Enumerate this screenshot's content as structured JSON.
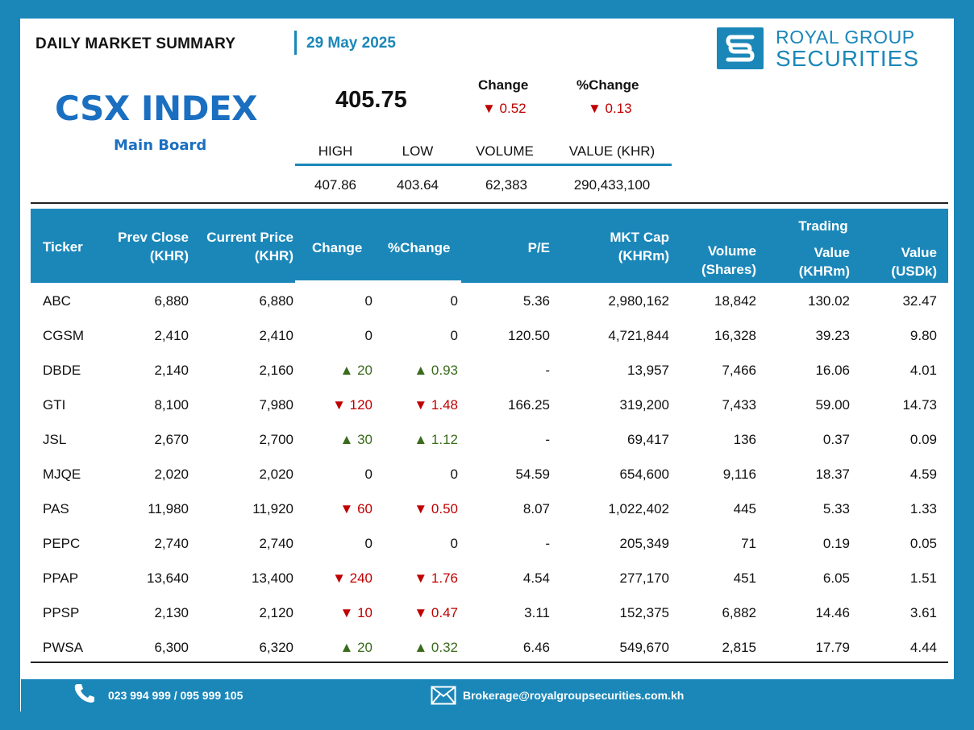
{
  "header": {
    "summary_title": "DAILY MARKET SUMMARY",
    "date": "29 May 2025",
    "brand_line1": "ROYAL GROUP",
    "brand_line2": "SECURITIES"
  },
  "index": {
    "name": "CSX INDEX",
    "board": "Main Board",
    "value": "405.75",
    "change_label": "Change",
    "pct_change_label": "%Change",
    "change": "▼ 0.52",
    "pct_change": "▼ 0.13",
    "stats": [
      {
        "label": "HIGH",
        "value": "407.86"
      },
      {
        "label": "LOW",
        "value": "403.64"
      },
      {
        "label": "VOLUME",
        "value": "62,383"
      },
      {
        "label": "VALUE (KHR)",
        "value": "290,433,100"
      }
    ]
  },
  "table": {
    "headers": {
      "ticker": "Ticker",
      "prev_close_1": "Prev Close",
      "prev_close_2": "(KHR)",
      "current_1": "Current Price",
      "current_2": "(KHR)",
      "change": "Change",
      "pct_change": "%Change",
      "pe": "P/E",
      "mkt_cap_1": "MKT Cap",
      "mkt_cap_2": "(KHRm)",
      "trading": "Trading",
      "volume_1": "Volume",
      "volume_2": "(Shares)",
      "value_khr_1": "Value",
      "value_khr_2": "(KHRm)",
      "value_usd_1": "Value",
      "value_usd_2": "(USDk)"
    },
    "rows": [
      {
        "ticker": "ABC",
        "prev": "6,880",
        "cur": "6,880",
        "chg": "0",
        "pct": "0",
        "dir": "flat",
        "pe": "5.36",
        "mcap": "2,980,162",
        "vol": "18,842",
        "val_khr": "130.02",
        "val_usd": "32.47"
      },
      {
        "ticker": "CGSM",
        "prev": "2,410",
        "cur": "2,410",
        "chg": "0",
        "pct": "0",
        "dir": "flat",
        "pe": "120.50",
        "mcap": "4,721,844",
        "vol": "16,328",
        "val_khr": "39.23",
        "val_usd": "9.80"
      },
      {
        "ticker": "DBDE",
        "prev": "2,140",
        "cur": "2,160",
        "chg": "▲ 20",
        "pct": "▲ 0.93",
        "dir": "up",
        "pe": "-",
        "mcap": "13,957",
        "vol": "7,466",
        "val_khr": "16.06",
        "val_usd": "4.01"
      },
      {
        "ticker": "GTI",
        "prev": "8,100",
        "cur": "7,980",
        "chg": "▼ 120",
        "pct": "▼ 1.48",
        "dir": "dn",
        "pe": "166.25",
        "mcap": "319,200",
        "vol": "7,433",
        "val_khr": "59.00",
        "val_usd": "14.73"
      },
      {
        "ticker": "JSL",
        "prev": "2,670",
        "cur": "2,700",
        "chg": "▲ 30",
        "pct": "▲ 1.12",
        "dir": "up",
        "pe": "-",
        "mcap": "69,417",
        "vol": "136",
        "val_khr": "0.37",
        "val_usd": "0.09"
      },
      {
        "ticker": "MJQE",
        "prev": "2,020",
        "cur": "2,020",
        "chg": "0",
        "pct": "0",
        "dir": "flat",
        "pe": "54.59",
        "mcap": "654,600",
        "vol": "9,116",
        "val_khr": "18.37",
        "val_usd": "4.59"
      },
      {
        "ticker": "PAS",
        "prev": "11,980",
        "cur": "11,920",
        "chg": "▼ 60",
        "pct": "▼ 0.50",
        "dir": "dn",
        "pe": "8.07",
        "mcap": "1,022,402",
        "vol": "445",
        "val_khr": "5.33",
        "val_usd": "1.33"
      },
      {
        "ticker": "PEPC",
        "prev": "2,740",
        "cur": "2,740",
        "chg": "0",
        "pct": "0",
        "dir": "flat",
        "pe": "-",
        "mcap": "205,349",
        "vol": "71",
        "val_khr": "0.19",
        "val_usd": "0.05"
      },
      {
        "ticker": "PPAP",
        "prev": "13,640",
        "cur": "13,400",
        "chg": "▼ 240",
        "pct": "▼ 1.76",
        "dir": "dn",
        "pe": "4.54",
        "mcap": "277,170",
        "vol": "451",
        "val_khr": "6.05",
        "val_usd": "1.51"
      },
      {
        "ticker": "PPSP",
        "prev": "2,130",
        "cur": "2,120",
        "chg": "▼ 10",
        "pct": "▼ 0.47",
        "dir": "dn",
        "pe": "3.11",
        "mcap": "152,375",
        "vol": "6,882",
        "val_khr": "14.46",
        "val_usd": "3.61"
      },
      {
        "ticker": "PWSA",
        "prev": "6,300",
        "cur": "6,320",
        "chg": "▲ 20",
        "pct": "▲ 0.32",
        "dir": "up",
        "pe": "6.46",
        "mcap": "549,670",
        "vol": "2,815",
        "val_khr": "17.79",
        "val_usd": "4.44"
      }
    ]
  },
  "footer": {
    "phone": "023 994 999 / 095 999 105",
    "email": "Brokerage@royalgroupsecurities.com.kh"
  },
  "colors": {
    "brand_blue": "#1b87b9",
    "title_blue": "#1b6fc0",
    "down_red": "#c00000",
    "up_green": "#3a6b1c"
  }
}
